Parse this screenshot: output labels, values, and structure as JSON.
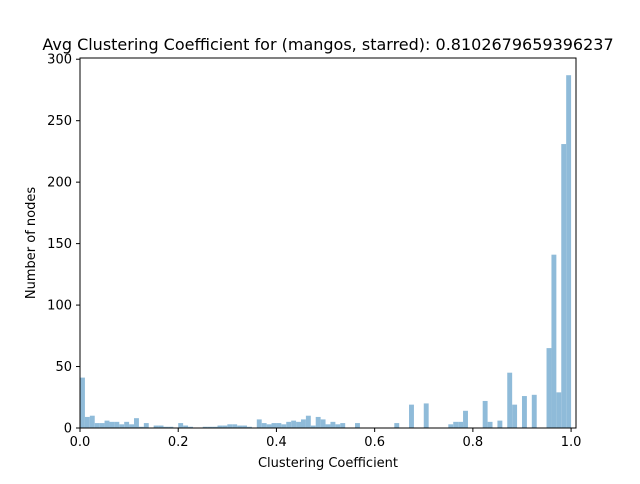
{
  "chart_data": {
    "type": "bar",
    "title": "Avg Clustering Coefficient for (mangos, starred): 0.8102679659396237",
    "xlabel": "Clustering Coefficient",
    "ylabel": "Number of nodes",
    "xlim": [
      0,
      1.01
    ],
    "ylim": [
      0,
      301
    ],
    "xticks": [
      0.0,
      0.2,
      0.4,
      0.6,
      0.8,
      1.0
    ],
    "xtick_labels": [
      "0.0",
      "0.2",
      "0.4",
      "0.6",
      "0.8",
      "1.0"
    ],
    "yticks": [
      0,
      50,
      100,
      150,
      200,
      250,
      300
    ],
    "ytick_labels": [
      "0",
      "50",
      "100",
      "150",
      "200",
      "250",
      "300"
    ],
    "bar_color": "#8fbbd9",
    "bin_width": 0.01,
    "bins": [
      [
        0.0,
        41
      ],
      [
        0.01,
        9
      ],
      [
        0.02,
        10
      ],
      [
        0.03,
        4
      ],
      [
        0.04,
        4
      ],
      [
        0.05,
        6
      ],
      [
        0.06,
        5
      ],
      [
        0.07,
        5
      ],
      [
        0.08,
        3
      ],
      [
        0.09,
        5
      ],
      [
        0.1,
        3
      ],
      [
        0.11,
        8
      ],
      [
        0.12,
        1
      ],
      [
        0.13,
        4
      ],
      [
        0.15,
        2
      ],
      [
        0.16,
        2
      ],
      [
        0.17,
        1
      ],
      [
        0.18,
        1
      ],
      [
        0.2,
        4
      ],
      [
        0.21,
        2
      ],
      [
        0.22,
        1
      ],
      [
        0.25,
        1
      ],
      [
        0.26,
        1
      ],
      [
        0.27,
        1
      ],
      [
        0.28,
        2
      ],
      [
        0.29,
        2
      ],
      [
        0.3,
        3
      ],
      [
        0.31,
        3
      ],
      [
        0.32,
        2
      ],
      [
        0.33,
        2
      ],
      [
        0.34,
        1
      ],
      [
        0.36,
        7
      ],
      [
        0.37,
        4
      ],
      [
        0.38,
        3
      ],
      [
        0.39,
        4
      ],
      [
        0.4,
        4
      ],
      [
        0.41,
        3
      ],
      [
        0.42,
        5
      ],
      [
        0.43,
        6
      ],
      [
        0.44,
        5
      ],
      [
        0.45,
        7
      ],
      [
        0.46,
        10
      ],
      [
        0.47,
        2
      ],
      [
        0.48,
        9
      ],
      [
        0.49,
        7
      ],
      [
        0.5,
        3
      ],
      [
        0.51,
        5
      ],
      [
        0.52,
        3
      ],
      [
        0.53,
        4
      ],
      [
        0.56,
        4
      ],
      [
        0.64,
        4
      ],
      [
        0.67,
        19
      ],
      [
        0.7,
        20
      ],
      [
        0.75,
        3
      ],
      [
        0.76,
        5
      ],
      [
        0.77,
        5
      ],
      [
        0.78,
        14
      ],
      [
        0.82,
        22
      ],
      [
        0.83,
        5
      ],
      [
        0.85,
        6
      ],
      [
        0.87,
        45
      ],
      [
        0.88,
        19
      ],
      [
        0.9,
        26
      ],
      [
        0.92,
        27
      ],
      [
        0.95,
        65
      ],
      [
        0.96,
        141
      ],
      [
        0.97,
        29
      ],
      [
        0.98,
        231
      ],
      [
        0.99,
        287
      ]
    ]
  }
}
